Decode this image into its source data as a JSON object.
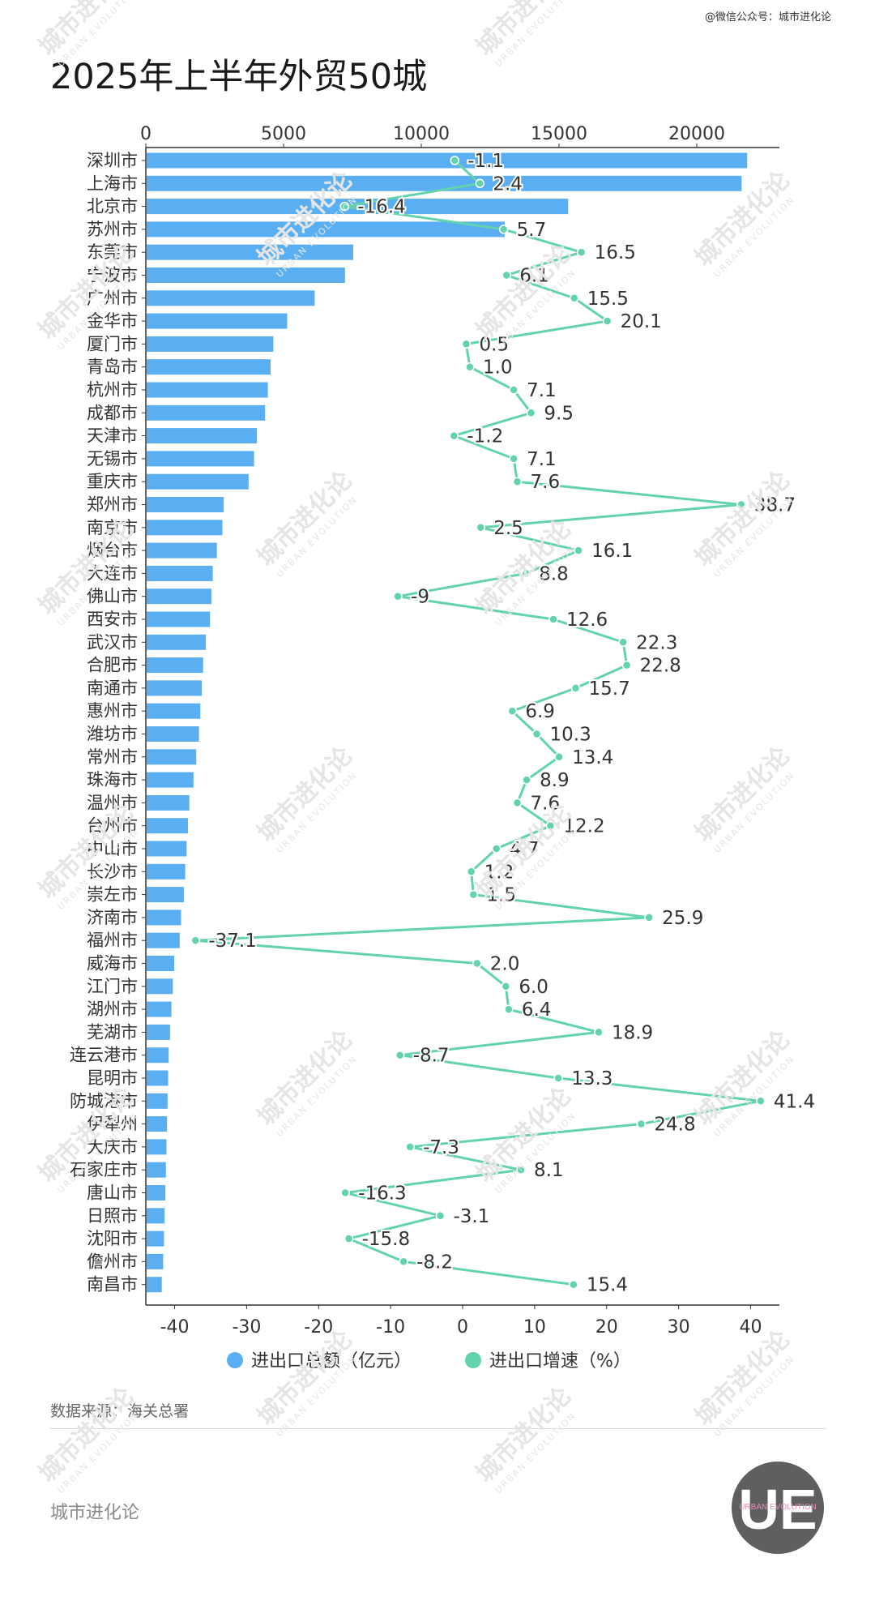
{
  "header": {
    "top_note": "@微信公众号：城市进化论",
    "title": "2025年上半年外贸50城"
  },
  "footer": {
    "source": "数据来源：海关总署",
    "brand": "城市进化论",
    "logo_text": "UE",
    "logo_subtext": "URBAN EVOLUTION",
    "watermark_text": "城市进化论",
    "watermark_subtext": "URBAN EVOLUTION"
  },
  "colors": {
    "bar": "#5aaff2",
    "line": "#62d3ad",
    "axis": "#333333",
    "text": "#333333",
    "watermark": "#e5e5e5"
  },
  "chart_data": {
    "type": "bar",
    "orientation": "horizontal",
    "title": "2025年上半年外贸50城",
    "categories": [
      "深圳市",
      "上海市",
      "北京市",
      "苏州市",
      "东莞市",
      "宁波市",
      "广州市",
      "金华市",
      "厦门市",
      "青岛市",
      "杭州市",
      "成都市",
      "天津市",
      "无锡市",
      "重庆市",
      "郑州市",
      "南京市",
      "烟台市",
      "大连市",
      "佛山市",
      "西安市",
      "武汉市",
      "合肥市",
      "南通市",
      "惠州市",
      "潍坊市",
      "常州市",
      "珠海市",
      "温州市",
      "台州市",
      "中山市",
      "长沙市",
      "崇左市",
      "济南市",
      "福州市",
      "威海市",
      "江门市",
      "湖州市",
      "芜湖市",
      "连云港市",
      "昆明市",
      "防城港市",
      "伊犁州",
      "大庆市",
      "石家庄市",
      "唐山市",
      "日照市",
      "沈阳市",
      "儋州市",
      "南昌市"
    ],
    "series": [
      {
        "name": "进出口总额（亿元）",
        "type": "bar",
        "axis": "top",
        "values": [
          21800,
          21600,
          15300,
          13000,
          7500,
          7200,
          6100,
          5100,
          4600,
          4500,
          4400,
          4300,
          4000,
          3900,
          3700,
          2800,
          2750,
          2550,
          2400,
          2350,
          2300,
          2150,
          2050,
          2000,
          1950,
          1900,
          1800,
          1700,
          1550,
          1500,
          1450,
          1400,
          1350,
          1250,
          1200,
          1000,
          950,
          900,
          850,
          800,
          780,
          760,
          740,
          720,
          700,
          680,
          650,
          630,
          600,
          550
        ]
      },
      {
        "name": "进出口增速（%）",
        "type": "line",
        "axis": "bottom",
        "values": [
          -1.1,
          2.4,
          -16.4,
          5.7,
          16.5,
          6.1,
          15.5,
          20.1,
          0.5,
          1.0,
          7.1,
          9.5,
          -1.2,
          7.1,
          7.6,
          38.7,
          2.5,
          16.1,
          8.8,
          -9,
          12.6,
          22.3,
          22.8,
          15.7,
          6.9,
          10.3,
          13.4,
          8.9,
          7.6,
          12.2,
          4.7,
          1.2,
          1.5,
          25.9,
          -37.1,
          2.0,
          6.0,
          6.4,
          18.9,
          -8.7,
          13.3,
          41.4,
          24.8,
          -7.3,
          8.1,
          -16.3,
          -3.1,
          -15.8,
          -8.2,
          15.4
        ],
        "labels": [
          "-1.1",
          "2.4",
          "-16.4",
          "5.7",
          "16.5",
          "6.1",
          "15.5",
          "20.1",
          "0.5",
          "1.0",
          "7.1",
          "9.5",
          "-1.2",
          "7.1",
          "7.6",
          "38.7",
          "2.5",
          "16.1",
          "8.8",
          "-9",
          "12.6",
          "22.3",
          "22.8",
          "15.7",
          "6.9",
          "10.3",
          "13.4",
          "8.9",
          "7.6",
          "12.2",
          "4.7",
          "1.2",
          "1.5",
          "25.9",
          "-37.1",
          "2.0",
          "6.0",
          "6.4",
          "18.9",
          "-8.7",
          "13.3",
          "41.4",
          "24.8",
          "-7.3",
          "8.1",
          "-16.3",
          "-3.1",
          "-15.8",
          "-8.2",
          "15.4"
        ]
      }
    ],
    "top_axis": {
      "min": 0,
      "max": 23000,
      "ticks": [
        0,
        5000,
        10000,
        15000,
        20000
      ],
      "tick_labels": [
        "0",
        "5000",
        "10000",
        "15000",
        "20000"
      ]
    },
    "bottom_axis": {
      "min": -44,
      "max": 44,
      "ticks": [
        -40,
        -30,
        -20,
        -10,
        0,
        10,
        20,
        30,
        40
      ],
      "tick_labels": [
        "-40",
        "-30",
        "-20",
        "-10",
        "0",
        "10",
        "20",
        "30",
        "40"
      ]
    },
    "legend": {
      "position": "bottom",
      "items": [
        "进出口总额（亿元）",
        "进出口增速（%）"
      ]
    },
    "grid": false
  }
}
